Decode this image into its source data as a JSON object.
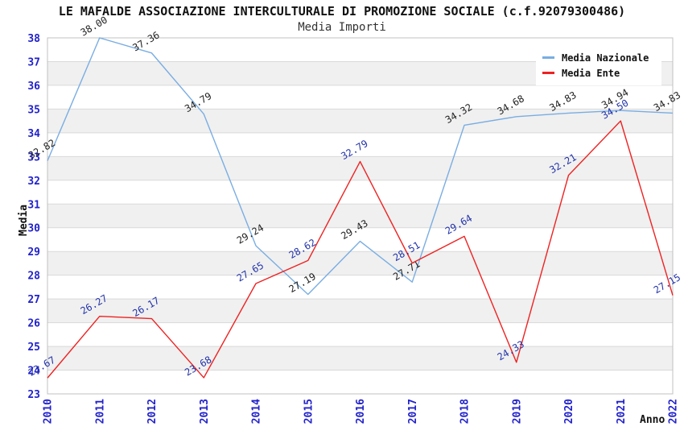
{
  "chart_data": {
    "type": "line",
    "title": "LE MAFALDE ASSOCIAZIONE INTERCULTURALE DI PROMOZIONE SOCIALE (c.f.92079300486)",
    "subtitle": "Media Importi",
    "xlabel": "Anno",
    "ylabel": "Media",
    "categories": [
      "2010",
      "2011",
      "2012",
      "2013",
      "2014",
      "2015",
      "2016",
      "2017",
      "2018",
      "2019",
      "2020",
      "2021",
      "2022"
    ],
    "ylim": [
      23,
      38
    ],
    "ytick_step": 1,
    "grid": true,
    "legend_position": "top-right",
    "series": [
      {
        "name": "Media Nazionale",
        "color": "#79ADE2",
        "label_color": "#222222",
        "values": [
          32.82,
          38.0,
          37.36,
          34.79,
          29.24,
          27.19,
          29.43,
          27.71,
          34.32,
          34.68,
          34.83,
          34.94,
          34.83
        ]
      },
      {
        "name": "Media Ente",
        "color": "#EE2222",
        "label_color": "#2233AA",
        "values": [
          23.67,
          26.27,
          26.17,
          23.68,
          27.65,
          28.62,
          32.79,
          28.51,
          29.64,
          24.33,
          32.21,
          34.5,
          27.15
        ]
      }
    ],
    "colors": {
      "tick_label": "#2222CC",
      "band": "#F0F0F0",
      "gridline": "#D9D9D9",
      "plot_border": "#C0C0C0",
      "background": "#FFFFFF"
    }
  }
}
